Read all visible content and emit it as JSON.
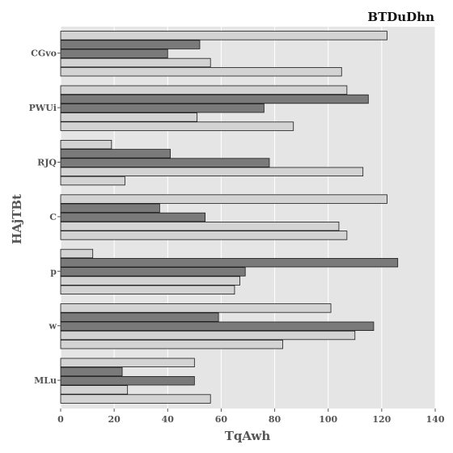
{
  "chart_data": {
    "type": "bar",
    "orientation": "horizontal",
    "title": "BTDuDhn",
    "xlabel": "TqAwh",
    "ylabel": "HAjTBt",
    "xlim": [
      0,
      140
    ],
    "xticks": [
      0,
      20,
      40,
      60,
      80,
      100,
      120,
      140
    ],
    "grid": true,
    "categories": [
      "CGvo",
      "PWUi",
      "RJQ",
      "C",
      "p",
      "w",
      "MLu"
    ],
    "series": [
      {
        "values": [
          122,
          107,
          19,
          122,
          12,
          101,
          50
        ],
        "color": "#d3d3d3"
      },
      {
        "values": [
          52,
          115,
          41,
          37,
          126,
          59,
          23
        ],
        "color": "#7a7a7a"
      },
      {
        "values": [
          40,
          76,
          78,
          54,
          69,
          117,
          50
        ],
        "color": "#7a7a7a"
      },
      {
        "values": [
          56,
          51,
          113,
          104,
          67,
          110,
          25
        ],
        "color": "#d3d3d3"
      },
      {
        "values": [
          105,
          87,
          24,
          107,
          65,
          83,
          56
        ],
        "color": "#d3d3d3"
      }
    ]
  }
}
